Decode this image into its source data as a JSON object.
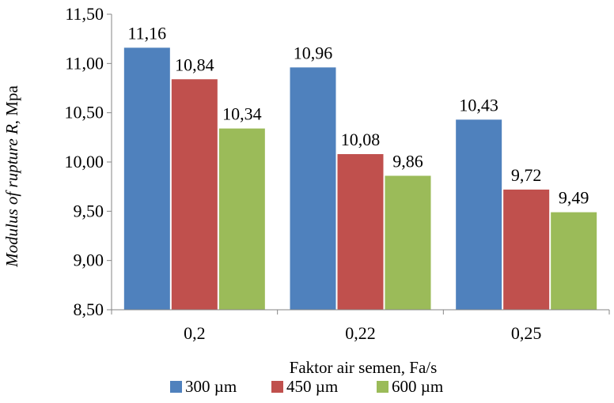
{
  "chart_data": {
    "type": "bar",
    "categories": [
      "0,2",
      "0,22",
      "0,25"
    ],
    "series": [
      {
        "name": "300 µm",
        "color": "#4F81BD",
        "values": [
          11.16,
          10.96,
          10.43
        ],
        "labels": [
          "11,16",
          "10,96",
          "10,43"
        ]
      },
      {
        "name": "450 µm",
        "color": "#C0504D",
        "values": [
          10.84,
          10.08,
          9.72
        ],
        "labels": [
          "10,84",
          "10,08",
          "9,72"
        ]
      },
      {
        "name": "600 µm",
        "color": "#9BBB59",
        "values": [
          10.34,
          9.86,
          9.49
        ],
        "labels": [
          "10,34",
          "9,86",
          "9,49"
        ]
      }
    ],
    "xlabel": "Faktor air semen, Fa/s",
    "ylabel": {
      "italic_part": "Modulus of rupture R",
      "normal_part": ", Mpa"
    },
    "ylim": [
      8.5,
      11.5
    ],
    "yticks": [
      {
        "value": 8.5,
        "label": "8,50"
      },
      {
        "value": 9.0,
        "label": "9,00"
      },
      {
        "value": 9.5,
        "label": "9,50"
      },
      {
        "value": 10.0,
        "label": "10,00"
      },
      {
        "value": 10.5,
        "label": "10,50"
      },
      {
        "value": 11.0,
        "label": "11,00"
      },
      {
        "value": 11.5,
        "label": "11,50"
      }
    ],
    "grid": false,
    "legend_position": "bottom"
  }
}
